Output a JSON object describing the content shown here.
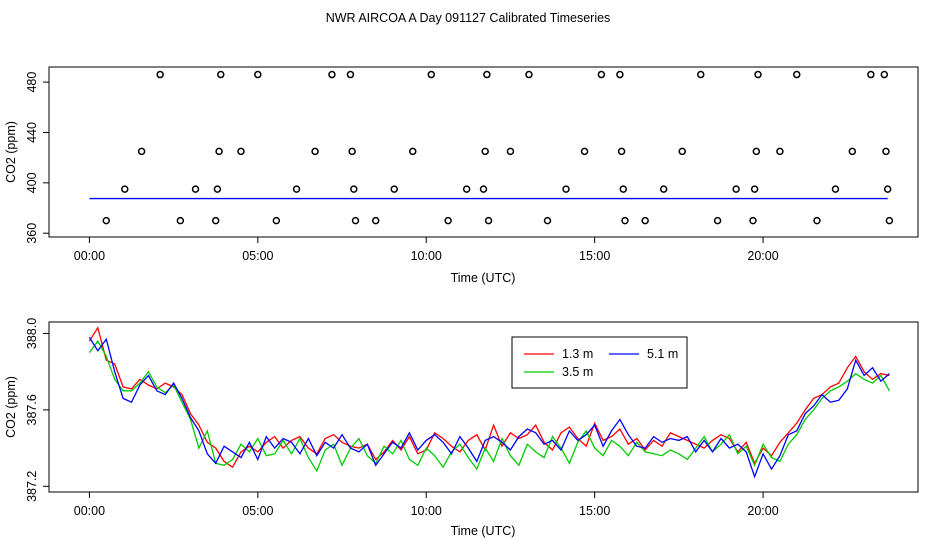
{
  "title": "NWR AIRCOA A  Day 091127  Calibrated Timeseries",
  "chart_data": [
    {
      "type": "scatter",
      "xlabel": "Time (UTC)",
      "ylabel": "CO2 (ppm)",
      "xlim": [
        -1.2,
        24.6
      ],
      "ylim": [
        357,
        492
      ],
      "xtick_values": [
        0,
        5,
        10,
        15,
        20
      ],
      "xtick_labels": [
        "00:00",
        "05:00",
        "10:00",
        "15:00",
        "20:00"
      ],
      "ytick_values": [
        360,
        400,
        440,
        480
      ],
      "ytick_labels": [
        "360",
        "400",
        "440",
        "480"
      ],
      "baseline": {
        "x": [
          0,
          23.7
        ],
        "y": 387.5,
        "color": "#0000ff"
      },
      "calibration_points": {
        "x": [
          0.5,
          1.05,
          1.55,
          2.1,
          2.7,
          3.15,
          3.75,
          3.8,
          3.85,
          3.9,
          4.5,
          5.0,
          5.55,
          6.15,
          6.7,
          7.2,
          7.75,
          7.8,
          7.85,
          7.9,
          8.5,
          9.05,
          9.6,
          10.15,
          10.65,
          11.2,
          11.7,
          11.75,
          11.8,
          11.85,
          12.5,
          13.05,
          13.6,
          14.15,
          14.7,
          15.2,
          15.75,
          15.8,
          15.85,
          15.9,
          16.5,
          17.05,
          17.6,
          18.15,
          18.65,
          19.2,
          19.7,
          19.75,
          19.8,
          19.85,
          20.5,
          21.0,
          21.6,
          22.15,
          22.65,
          23.2,
          23.6,
          23.65,
          23.7,
          23.75
        ],
        "y": [
          370,
          395,
          425,
          486,
          370,
          395,
          370,
          395,
          425,
          486,
          425,
          486,
          370,
          395,
          425,
          486,
          486,
          425,
          395,
          370,
          370,
          395,
          425,
          486,
          370,
          395,
          395,
          425,
          486,
          370,
          425,
          486,
          370,
          395,
          425,
          486,
          486,
          425,
          395,
          370,
          370,
          395,
          425,
          486,
          370,
          395,
          370,
          395,
          425,
          486,
          425,
          486,
          370,
          395,
          425,
          486,
          486,
          425,
          395,
          370
        ]
      }
    },
    {
      "type": "line",
      "xlabel": "Time (UTC)",
      "ylabel": "CO2 (ppm)",
      "xlim": [
        -1.2,
        24.6
      ],
      "ylim": [
        387.17,
        388.06
      ],
      "xtick_values": [
        0,
        5,
        10,
        15,
        20
      ],
      "xtick_labels": [
        "00:00",
        "05:00",
        "10:00",
        "15:00",
        "20:00"
      ],
      "ytick_values": [
        387.2,
        387.6,
        388.0
      ],
      "ytick_labels": [
        "387.2",
        "387.6",
        "388.0"
      ],
      "legend_position": "top-right",
      "x": [
        0.0,
        0.25,
        0.5,
        0.75,
        1.0,
        1.25,
        1.5,
        1.75,
        2.0,
        2.25,
        2.5,
        2.75,
        3.0,
        3.25,
        3.5,
        3.75,
        4.0,
        4.25,
        4.5,
        4.75,
        5.0,
        5.25,
        5.5,
        5.75,
        6.0,
        6.25,
        6.5,
        6.75,
        7.0,
        7.25,
        7.5,
        7.75,
        8.0,
        8.25,
        8.5,
        8.75,
        9.0,
        9.25,
        9.5,
        9.75,
        10.0,
        10.25,
        10.5,
        10.75,
        11.0,
        11.25,
        11.5,
        11.75,
        12.0,
        12.25,
        12.5,
        12.75,
        13.0,
        13.25,
        13.5,
        13.75,
        14.0,
        14.25,
        14.5,
        14.75,
        15.0,
        15.25,
        15.5,
        15.75,
        16.0,
        16.25,
        16.5,
        16.75,
        17.0,
        17.25,
        17.5,
        17.75,
        18.0,
        18.25,
        18.5,
        18.75,
        19.0,
        19.25,
        19.5,
        19.75,
        20.0,
        20.25,
        20.5,
        20.75,
        21.0,
        21.25,
        21.5,
        21.75,
        22.0,
        22.25,
        22.5,
        22.75,
        23.0,
        23.25,
        23.5,
        23.75
      ],
      "series": [
        {
          "name": "1.3 m",
          "color": "#ff0000",
          "values": [
            387.96,
            388.03,
            387.86,
            387.84,
            387.72,
            387.71,
            387.76,
            387.73,
            387.71,
            387.74,
            387.72,
            387.68,
            387.58,
            387.52,
            387.43,
            387.4,
            387.33,
            387.3,
            387.38,
            387.41,
            387.38,
            387.43,
            387.46,
            387.4,
            387.44,
            387.46,
            387.4,
            387.37,
            387.45,
            387.47,
            387.43,
            387.41,
            387.4,
            387.42,
            387.34,
            387.38,
            387.44,
            387.39,
            387.46,
            387.37,
            387.39,
            387.48,
            387.45,
            387.41,
            387.38,
            387.44,
            387.47,
            387.39,
            387.52,
            387.41,
            387.48,
            387.45,
            387.47,
            387.52,
            387.43,
            387.39,
            387.48,
            387.51,
            387.45,
            387.41,
            387.53,
            387.44,
            387.46,
            387.5,
            387.42,
            387.45,
            387.39,
            387.44,
            387.41,
            387.48,
            387.46,
            387.44,
            387.42,
            387.4,
            387.44,
            387.47,
            387.45,
            387.38,
            387.43,
            387.32,
            387.4,
            387.36,
            387.43,
            387.48,
            387.53,
            387.6,
            387.66,
            387.68,
            387.72,
            387.74,
            387.82,
            387.88,
            387.8,
            387.76,
            387.79,
            387.78
          ]
        },
        {
          "name": "3.5 m",
          "color": "#00cc00",
          "values": [
            387.9,
            387.96,
            387.88,
            387.76,
            387.7,
            387.7,
            387.74,
            387.8,
            387.72,
            387.69,
            387.73,
            387.64,
            387.55,
            387.4,
            387.49,
            387.32,
            387.31,
            387.34,
            387.42,
            387.38,
            387.45,
            387.36,
            387.37,
            387.44,
            387.37,
            387.45,
            387.35,
            387.28,
            387.39,
            387.42,
            387.31,
            387.4,
            387.45,
            387.36,
            387.32,
            387.41,
            387.37,
            387.44,
            387.34,
            387.31,
            387.4,
            387.36,
            387.3,
            387.38,
            387.42,
            387.35,
            387.29,
            387.4,
            387.33,
            387.45,
            387.36,
            387.31,
            387.42,
            387.38,
            387.35,
            387.46,
            387.4,
            387.32,
            387.43,
            387.49,
            387.4,
            387.36,
            387.44,
            387.41,
            387.36,
            387.43,
            387.38,
            387.37,
            387.36,
            387.39,
            387.37,
            387.34,
            387.4,
            387.46,
            387.38,
            387.42,
            387.47,
            387.37,
            387.41,
            387.31,
            387.42,
            387.35,
            387.33,
            387.42,
            387.47,
            387.55,
            387.6,
            387.66,
            387.7,
            387.72,
            387.75,
            387.79,
            387.76,
            387.74,
            387.78,
            387.7
          ]
        },
        {
          "name": "5.1 m",
          "color": "#0000ff",
          "values": [
            387.98,
            387.91,
            387.97,
            387.8,
            387.66,
            387.64,
            387.73,
            387.78,
            387.7,
            387.68,
            387.74,
            387.66,
            387.56,
            387.49,
            387.37,
            387.32,
            387.41,
            387.38,
            387.35,
            387.43,
            387.34,
            387.46,
            387.4,
            387.45,
            387.43,
            387.37,
            387.45,
            387.36,
            387.43,
            387.4,
            387.47,
            387.4,
            387.38,
            387.42,
            387.31,
            387.37,
            387.43,
            387.4,
            387.48,
            387.39,
            387.44,
            387.47,
            387.43,
            387.37,
            387.46,
            387.4,
            387.33,
            387.44,
            387.46,
            387.43,
            387.39,
            387.46,
            387.5,
            387.48,
            387.42,
            387.44,
            387.39,
            387.49,
            387.44,
            387.47,
            387.52,
            387.41,
            387.49,
            387.55,
            387.47,
            387.41,
            387.4,
            387.46,
            387.43,
            387.45,
            387.44,
            387.46,
            387.38,
            387.44,
            387.38,
            387.45,
            387.4,
            387.42,
            387.38,
            387.25,
            387.37,
            387.29,
            387.36,
            387.47,
            387.49,
            387.58,
            387.62,
            387.68,
            387.64,
            387.65,
            387.71,
            387.86,
            387.78,
            387.82,
            387.75,
            387.79
          ]
        }
      ]
    }
  ]
}
